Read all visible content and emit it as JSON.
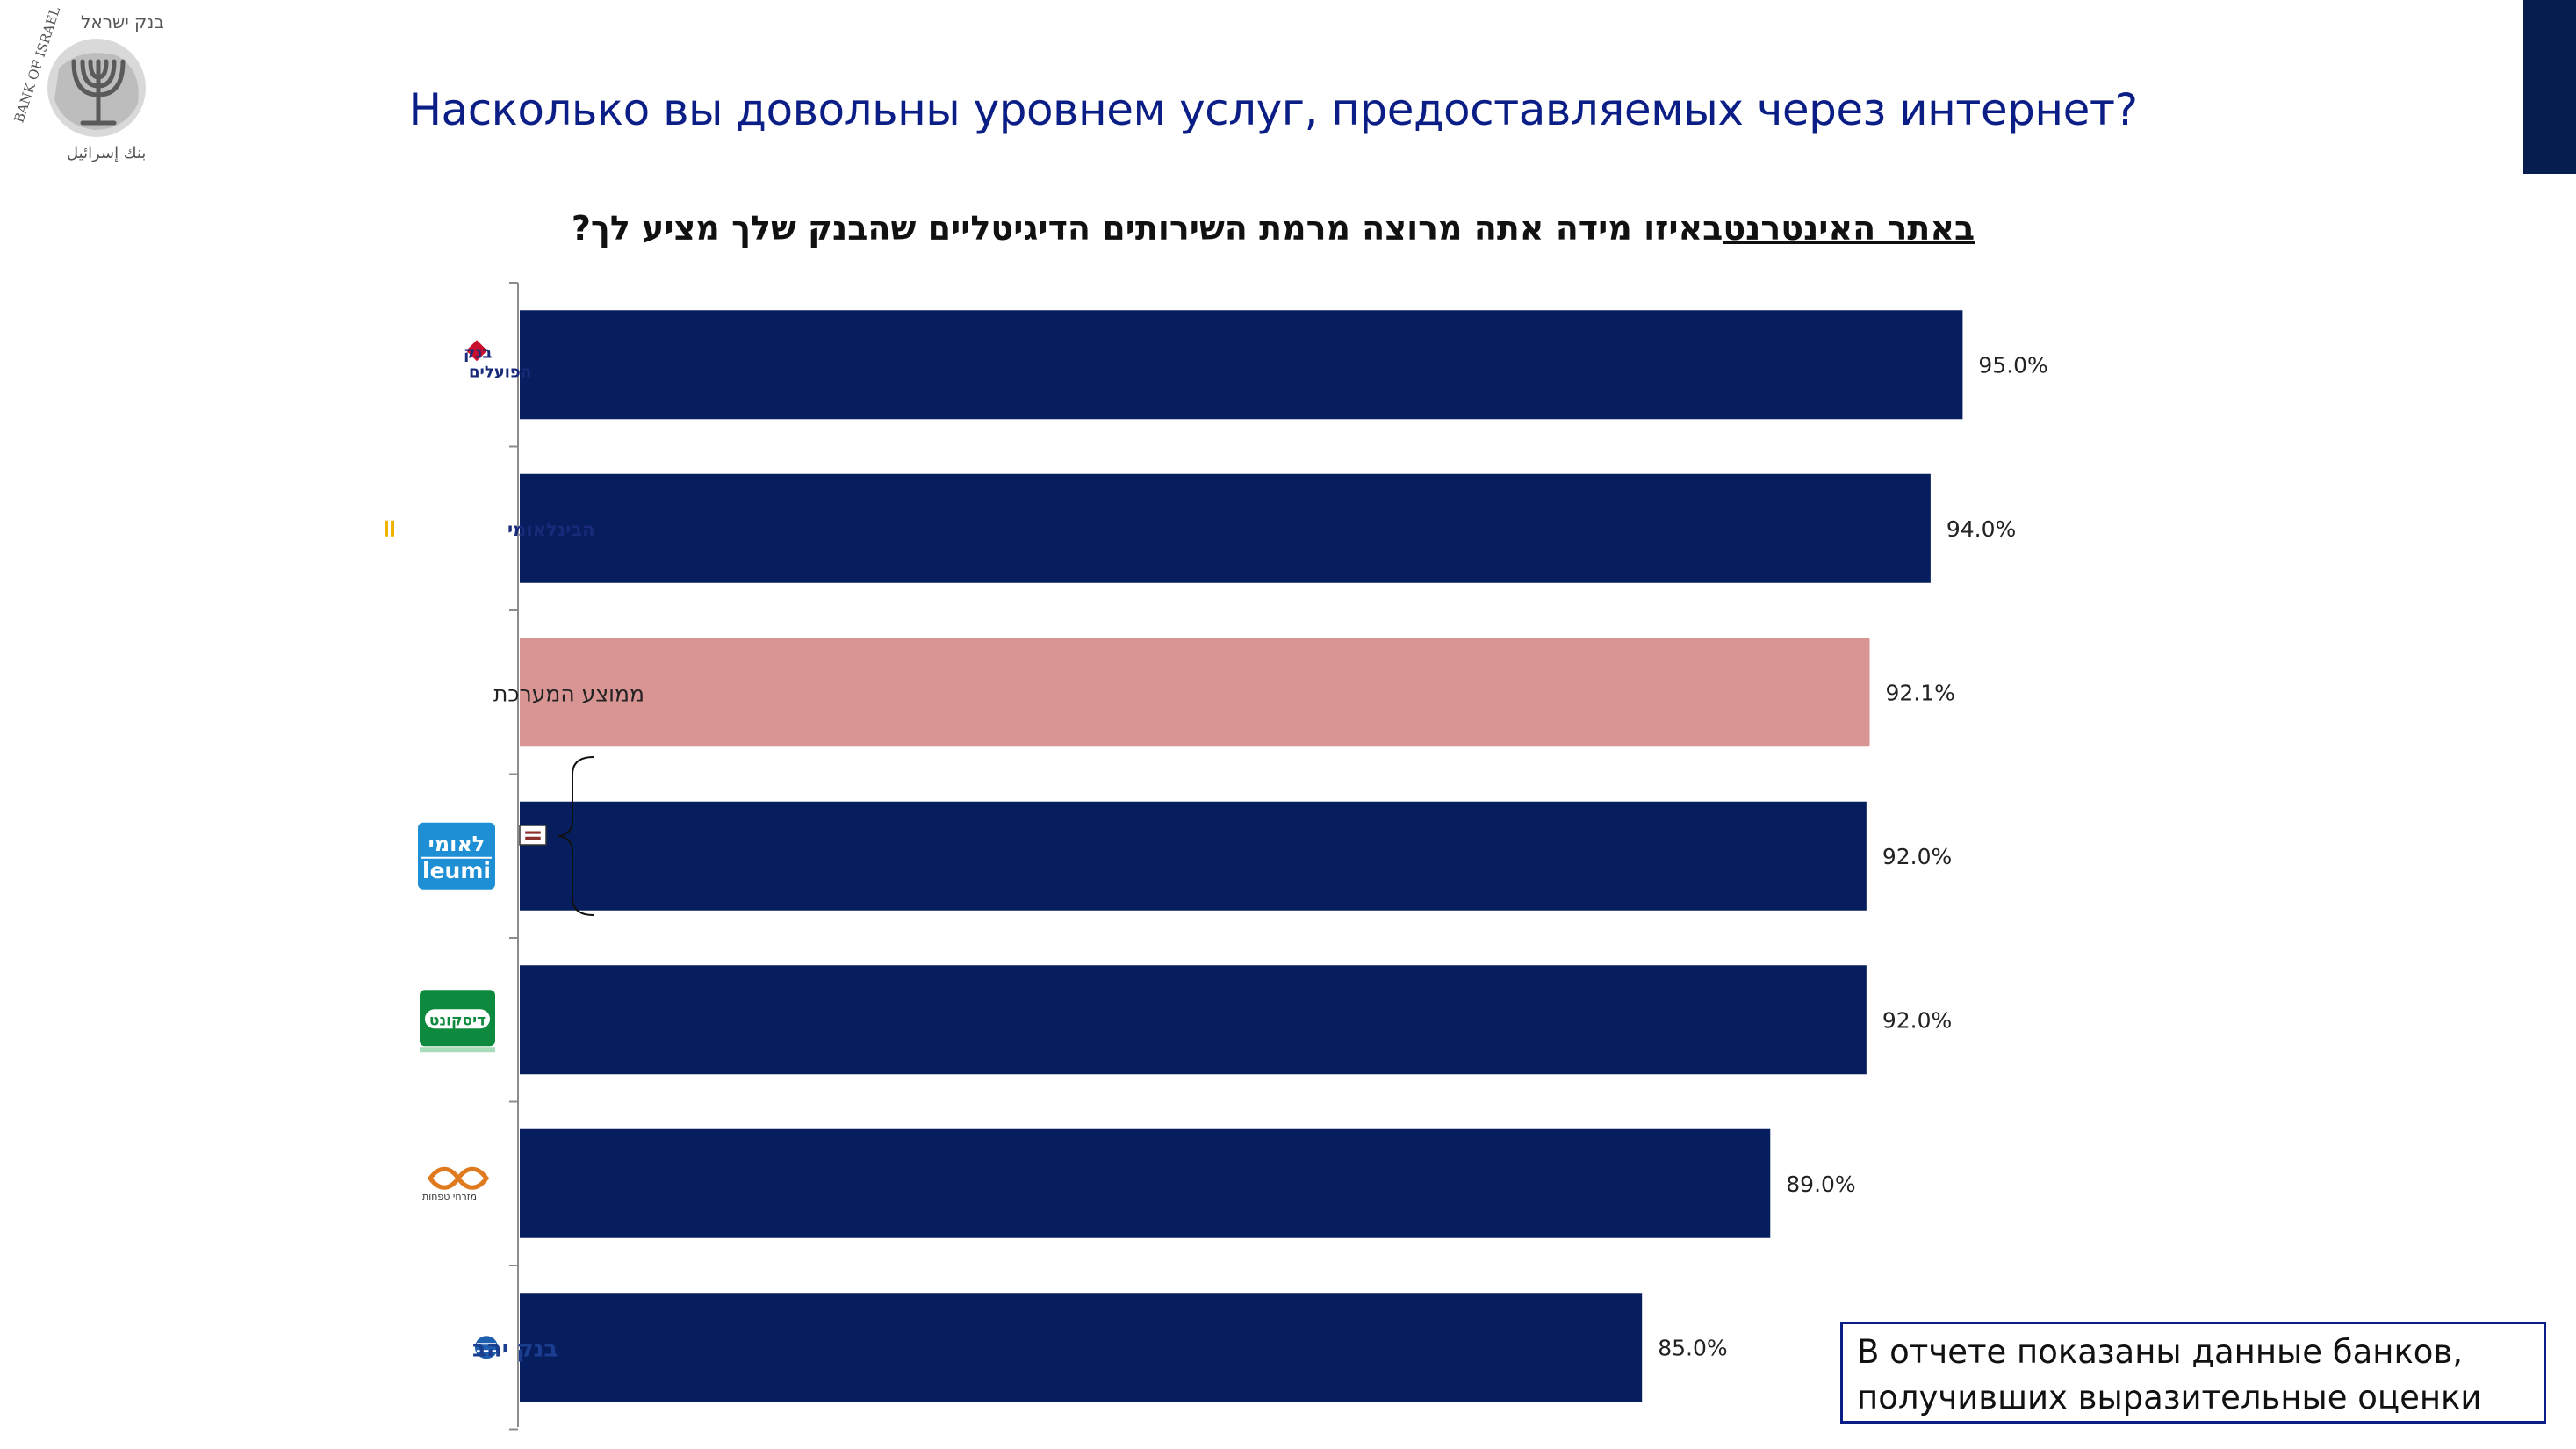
{
  "logo": {
    "hebrew": "בנק ישראל",
    "english": "BANK OF ISRAEL",
    "arabic": "بنك إسرائيل"
  },
  "title": "Насколько вы довольны уровнем услуг, предоставляемых через интернет?",
  "subtitle": {
    "part1": "?",
    "underlined": "באתר האינטרנט",
    "part2": "באיזו מידה אתה מרוצה מרמת השירותים הדיגיטליים שהבנק שלך מציע לך "
  },
  "note": {
    "line1": "В отчете показаны данные банков,",
    "line2": "получивших выразительные оценки"
  },
  "colors": {
    "bar": "#061E5E",
    "highlight": "#D99594",
    "accent": "#0B1E86",
    "leumi": "#1E8FD5",
    "discount": "#0E8A3F",
    "hapoalim": "#C8102E"
  },
  "chart_data": {
    "type": "bar",
    "orientation": "horizontal",
    "categories": [
      {
        "name": "בנק הפועלים",
        "logo": "hapoalim-logo",
        "value": 95.0,
        "label": "95.0%",
        "highlight": false
      },
      {
        "name": "הבינלאומי",
        "logo": "international-bank-logo",
        "value": 94.0,
        "label": "94.0%",
        "highlight": false
      },
      {
        "name": "ממוצע המערכת",
        "logo": "",
        "value": 92.1,
        "label": "92.1%",
        "highlight": true
      },
      {
        "name": "לאומי leumi",
        "logo": "leumi-logo",
        "value": 92.0,
        "label": "92.0%",
        "highlight": false
      },
      {
        "name": "דיסקונט",
        "logo": "discount-logo",
        "value": 92.0,
        "label": "92.0%",
        "highlight": false
      },
      {
        "name": "מזרחי טפחות",
        "logo": "mizrahi-tefahot-logo",
        "value": 89.0,
        "label": "89.0%",
        "highlight": false
      },
      {
        "name": "בנק יהב",
        "logo": "yahav-logo",
        "value": 85.0,
        "label": "85.0%",
        "highlight": false
      }
    ],
    "xlim": [
      50,
      100
    ],
    "equal_marker": "=",
    "title": "באיזו מידה אתה מרוצה מרמת השירותים הדיגיטליים שהבנק שלך מציע לך באתר האינטרנט?",
    "xlabel": "",
    "ylabel": ""
  }
}
